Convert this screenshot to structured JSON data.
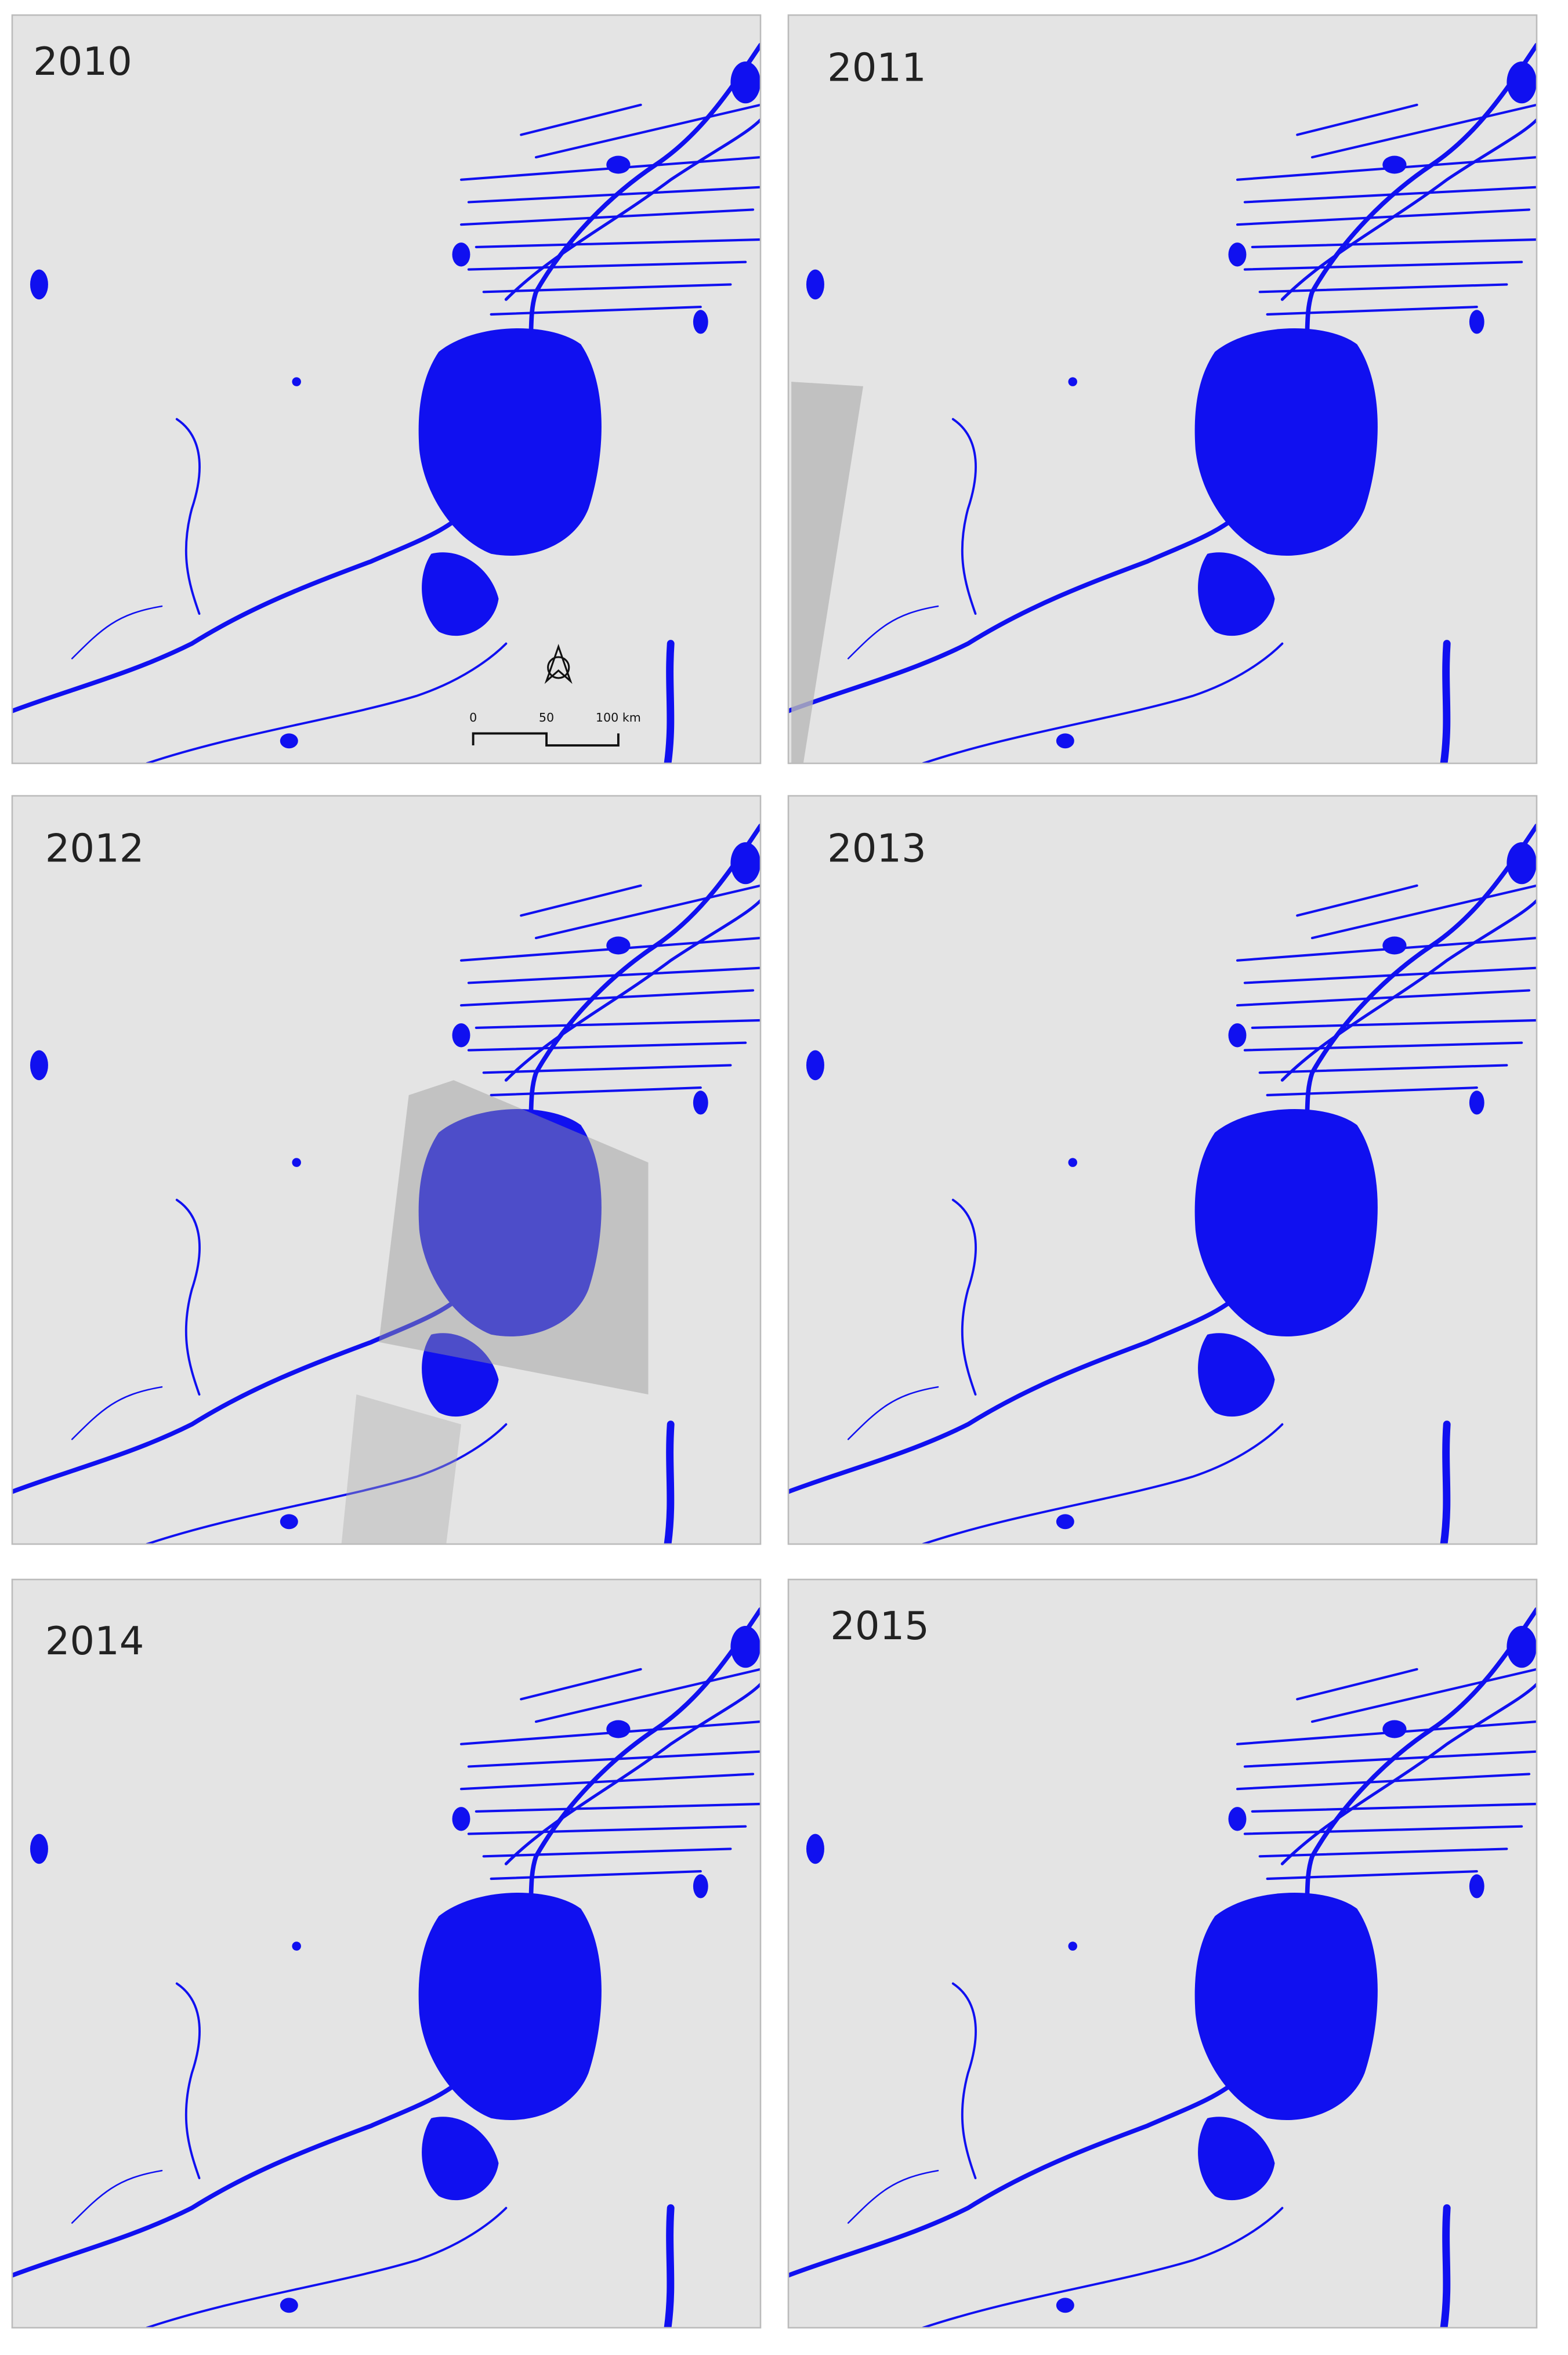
{
  "panels": [
    {
      "label": "2010"
    },
    {
      "label": "2011"
    },
    {
      "label": "2012"
    },
    {
      "label": "2013"
    },
    {
      "label": "2014"
    },
    {
      "label": "2015"
    }
  ],
  "scale_bar": {
    "labels": [
      "0",
      "50",
      "100 km"
    ]
  }
}
